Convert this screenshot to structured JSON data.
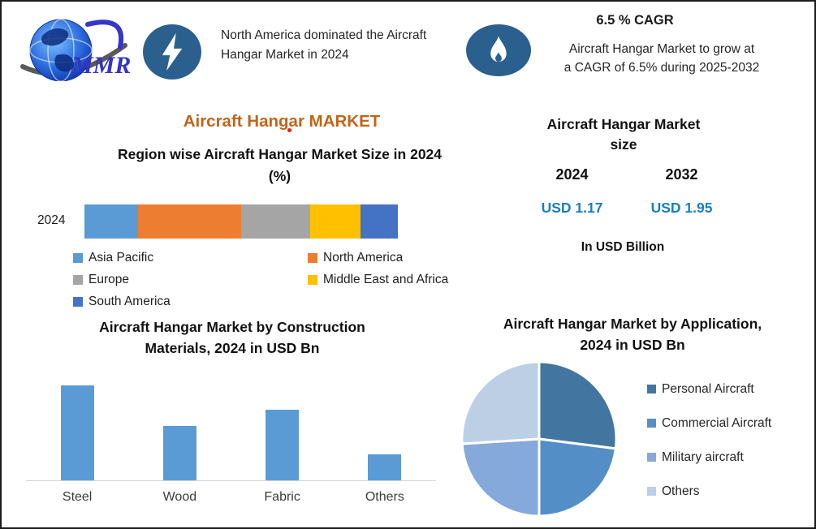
{
  "brand": {
    "logo_text": "MMR"
  },
  "header": {
    "fact1": {
      "icon": "lightning-icon",
      "text": "North America dominated the Aircraft Hangar Market in 2024"
    },
    "fact2": {
      "icon": "flame-icon",
      "headline": "6.5 % CAGR",
      "lines": [
        "Aircraft Hangar Market to grow at",
        "a CAGR of 6.5% during 2025-2032"
      ]
    }
  },
  "main_title": "Aircraft Hangar MARKET",
  "market_size": {
    "title_lines": [
      "Aircraft Hangar Market",
      "size"
    ],
    "columns": [
      {
        "year": "2024",
        "value": "USD 1.17"
      },
      {
        "year": "2032",
        "value": "USD 1.95"
      }
    ],
    "unit": "In USD Billion"
  },
  "colors": {
    "accent_orange": "#C2641A",
    "value_blue": "#177EC9",
    "icon_circle_blue": "#2B608E",
    "bar_blue": "#5B9BD5"
  },
  "chart_data": [
    {
      "id": "region_stacked",
      "type": "bar",
      "orientation": "horizontal-stacked",
      "title": "Region wise Aircraft Hangar Market Size in 2024 (%)",
      "title_lines": [
        "Region wise Aircraft Hangar Market Size in 2024",
        "(%)"
      ],
      "categories": [
        "2024"
      ],
      "series": [
        {
          "name": "Asia Pacific",
          "values": [
            17
          ],
          "color": "#5B9BD5"
        },
        {
          "name": "North America",
          "values": [
            33
          ],
          "color": "#ED7D31"
        },
        {
          "name": "Europe",
          "values": [
            22
          ],
          "color": "#A5A5A5"
        },
        {
          "name": "Middle East and Africa",
          "values": [
            16
          ],
          "color": "#FFC000"
        },
        {
          "name": "South America",
          "values": [
            12
          ],
          "color": "#4472C4"
        }
      ],
      "xlim": [
        0,
        100
      ],
      "grid": false,
      "legend_position": "bottom"
    },
    {
      "id": "materials_bar",
      "type": "bar",
      "title": "Aircraft Hangar Market by Construction Materials, 2024 in USD Bn",
      "title_lines": [
        "Aircraft Hangar Market by Construction",
        "Materials, 2024 in USD Bn"
      ],
      "categories": [
        "Steel",
        "Wood",
        "Fabric",
        "Others"
      ],
      "values": [
        0.47,
        0.27,
        0.35,
        0.13
      ],
      "bar_color": "#5B9BD5",
      "ylim": [
        0,
        0.5
      ],
      "grid": false,
      "legend_position": "none"
    },
    {
      "id": "application_pie",
      "type": "pie",
      "title": "Aircraft Hangar Market by Application, 2024 in USD Bn",
      "title_lines": [
        "Aircraft Hangar Market by Application,",
        "2024 in USD Bn"
      ],
      "labels": [
        "Personal Aircraft",
        "Commercial Aircraft",
        "Military aircraft",
        "Others"
      ],
      "values": [
        27,
        23,
        24,
        26
      ],
      "colors": [
        "#4276A0",
        "#548EC7",
        "#86A9DB",
        "#BCCFE5"
      ],
      "start_angle_deg": 0,
      "direction": "clockwise",
      "legend_position": "right"
    }
  ]
}
